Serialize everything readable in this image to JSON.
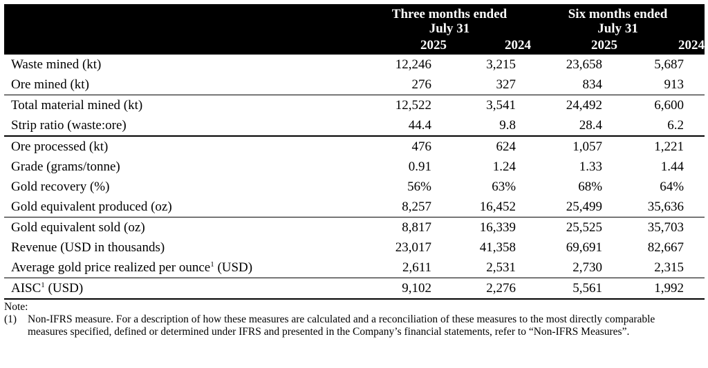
{
  "table": {
    "group_headers": [
      {
        "line1": "Three months ended",
        "line2": "July 31"
      },
      {
        "line1": "Six months ended",
        "line2": "July 31"
      }
    ],
    "years": [
      "2025",
      "2024",
      "2025",
      "2024"
    ],
    "rows": [
      {
        "label": "Waste mined (kt)",
        "sup": "",
        "label_suffix": "",
        "values": [
          "12,246",
          "3,215",
          "23,658",
          "5,687"
        ]
      },
      {
        "label": "Ore mined (kt)",
        "sup": "",
        "label_suffix": "",
        "values": [
          "276",
          "327",
          "834",
          "913"
        ]
      },
      {
        "label": "Total material mined (kt)",
        "sup": "",
        "label_suffix": "",
        "values": [
          "12,522",
          "3,541",
          "24,492",
          "6,600"
        ]
      },
      {
        "label": "Strip ratio (waste:ore)",
        "sup": "",
        "label_suffix": "",
        "values": [
          "44.4",
          "9.8",
          "28.4",
          "6.2"
        ]
      },
      {
        "label": "Ore processed (kt)",
        "sup": "",
        "label_suffix": "",
        "values": [
          "476",
          "624",
          "1,057",
          "1,221"
        ]
      },
      {
        "label": "Grade (grams/tonne)",
        "sup": "",
        "label_suffix": "",
        "values": [
          "0.91",
          "1.24",
          "1.33",
          "1.44"
        ]
      },
      {
        "label": "Gold recovery (%)",
        "sup": "",
        "label_suffix": "",
        "values": [
          "56%",
          "63%",
          "68%",
          "64%"
        ]
      },
      {
        "label": "Gold equivalent produced (oz)",
        "sup": "",
        "label_suffix": "",
        "values": [
          "8,257",
          "16,452",
          "25,499",
          "35,636"
        ]
      },
      {
        "label": "Gold equivalent sold (oz)",
        "sup": "",
        "label_suffix": "",
        "values": [
          "8,817",
          "16,339",
          "25,525",
          "35,703"
        ]
      },
      {
        "label": "Revenue (USD in thousands)",
        "sup": "",
        "label_suffix": "",
        "values": [
          "23,017",
          "41,358",
          "69,691",
          "82,667"
        ]
      },
      {
        "label": "Average gold price realized per ounce",
        "sup": "1",
        "label_suffix": " (USD)",
        "values": [
          "2,611",
          "2,531",
          "2,730",
          "2,315"
        ]
      },
      {
        "label": "AISC",
        "sup": "1",
        "label_suffix": " (USD)",
        "values": [
          "9,102",
          "2,276",
          "5,561",
          "1,992"
        ]
      }
    ]
  },
  "notes": {
    "heading": "Note:",
    "items": [
      {
        "num": "(1)",
        "text": "Non-IFRS measure. For a description of how these measures are calculated and a reconciliation of these measures to the most directly comparable measures specified, defined or determined under IFRS and presented in the Company’s financial statements, refer to “Non-IFRS Measures”."
      }
    ]
  }
}
